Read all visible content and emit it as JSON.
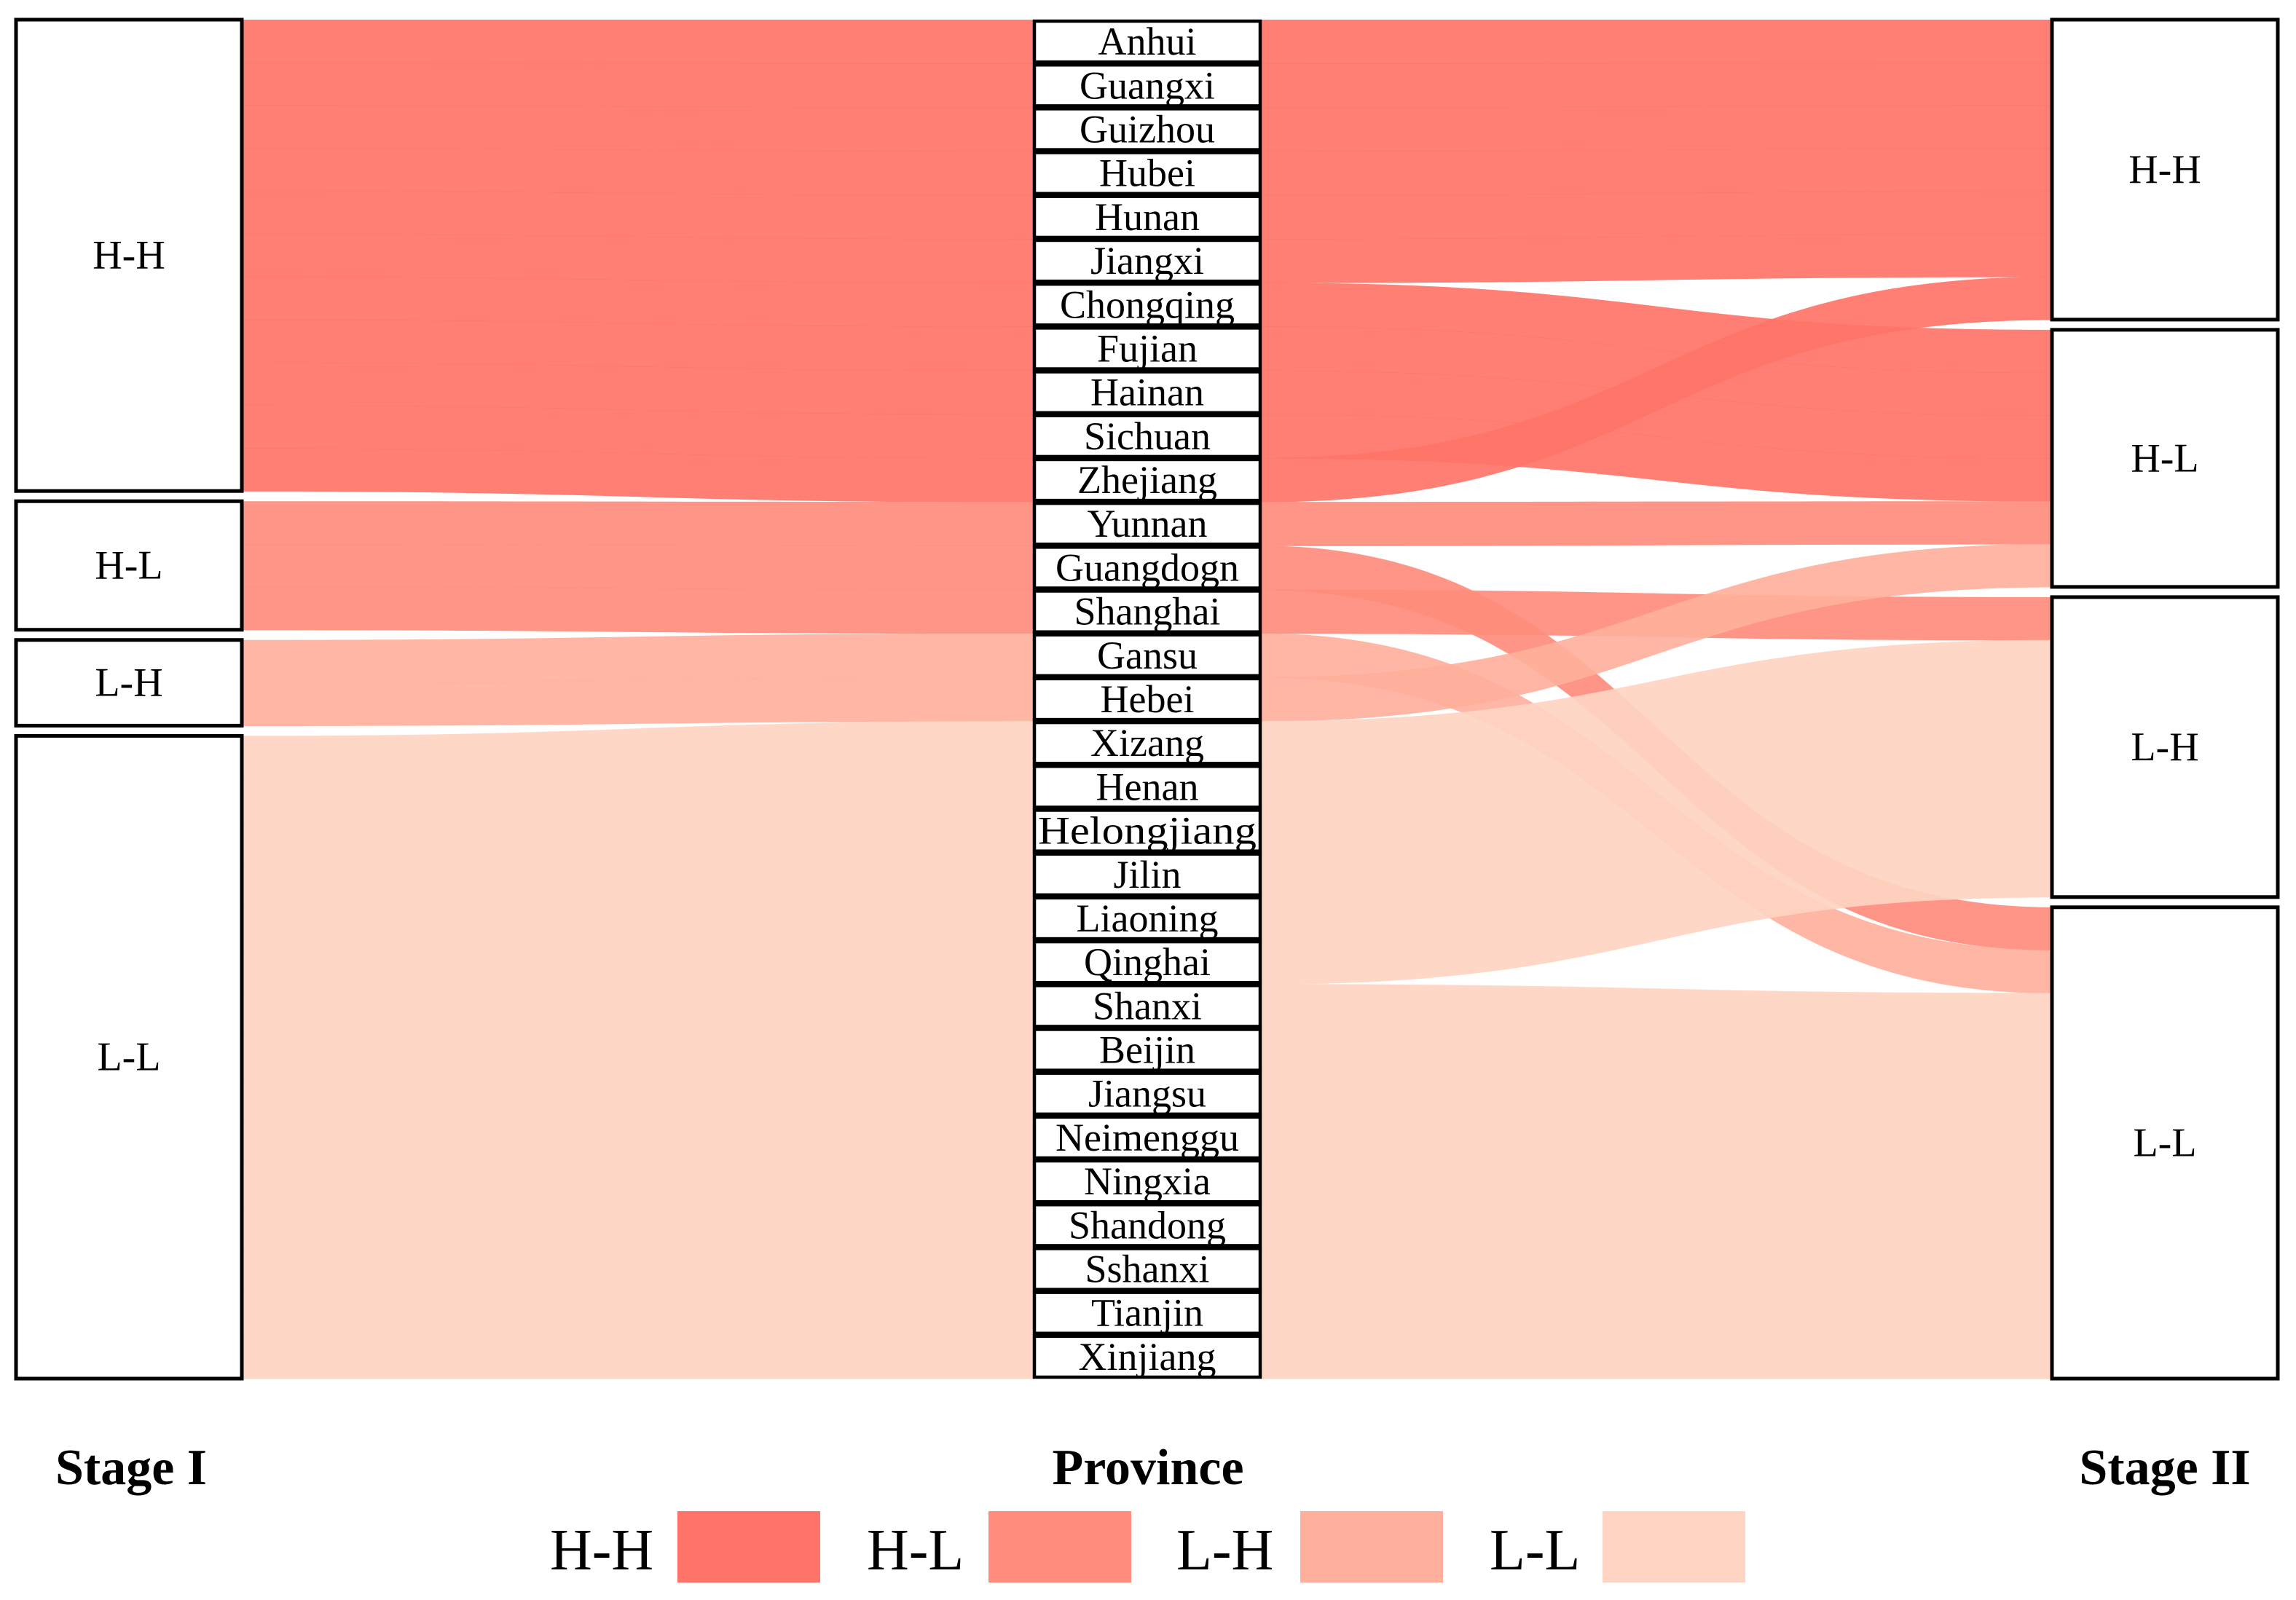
{
  "chart_data": {
    "type": "sankey",
    "axes": [
      "Stage I",
      "Province",
      "Stage II"
    ],
    "categories": [
      "H-H",
      "H-L",
      "L-H",
      "L-L"
    ],
    "colors": {
      "H-H": "#ff7468",
      "H-L": "#ff8c7c",
      "L-H": "#ffb09c",
      "L-L": "#ffd4c2"
    },
    "provinces": [
      {
        "name": "Anhui",
        "stage1": "H-H",
        "stage2": "H-H"
      },
      {
        "name": "Guangxi",
        "stage1": "H-H",
        "stage2": "H-H"
      },
      {
        "name": "Guizhou",
        "stage1": "H-H",
        "stage2": "H-H"
      },
      {
        "name": "Hubei",
        "stage1": "H-H",
        "stage2": "H-H"
      },
      {
        "name": "Hunan",
        "stage1": "H-H",
        "stage2": "H-H"
      },
      {
        "name": "Jiangxi",
        "stage1": "H-H",
        "stage2": "H-H"
      },
      {
        "name": "Chongqing",
        "stage1": "H-H",
        "stage2": "H-L"
      },
      {
        "name": "Fujian",
        "stage1": "H-H",
        "stage2": "H-L"
      },
      {
        "name": "Hainan",
        "stage1": "H-H",
        "stage2": "H-L"
      },
      {
        "name": "Sichuan",
        "stage1": "H-H",
        "stage2": "H-L"
      },
      {
        "name": "Zhejiang",
        "stage1": "H-H",
        "stage2": "H-H"
      },
      {
        "name": "Yunnan",
        "stage1": "H-L",
        "stage2": "H-L"
      },
      {
        "name": "Guangdogn",
        "stage1": "H-L",
        "stage2": "L-L"
      },
      {
        "name": "Shanghai",
        "stage1": "H-L",
        "stage2": "L-H"
      },
      {
        "name": "Gansu",
        "stage1": "L-H",
        "stage2": "L-L"
      },
      {
        "name": "Hebei",
        "stage1": "L-H",
        "stage2": "H-L"
      },
      {
        "name": "Xizang",
        "stage1": "L-L",
        "stage2": "L-H"
      },
      {
        "name": "Henan",
        "stage1": "L-L",
        "stage2": "L-H"
      },
      {
        "name": "Helongjiang",
        "stage1": "L-L",
        "stage2": "L-H"
      },
      {
        "name": "Jilin",
        "stage1": "L-L",
        "stage2": "L-H"
      },
      {
        "name": "Liaoning",
        "stage1": "L-L",
        "stage2": "L-H"
      },
      {
        "name": "Qinghai",
        "stage1": "L-L",
        "stage2": "L-H"
      },
      {
        "name": "Shanxi",
        "stage1": "L-L",
        "stage2": "L-L"
      },
      {
        "name": "Beijin",
        "stage1": "L-L",
        "stage2": "L-L"
      },
      {
        "name": "Jiangsu",
        "stage1": "L-L",
        "stage2": "L-L"
      },
      {
        "name": "Neimenggu",
        "stage1": "L-L",
        "stage2": "L-L"
      },
      {
        "name": "Ningxia",
        "stage1": "L-L",
        "stage2": "L-L"
      },
      {
        "name": "Shandong",
        "stage1": "L-L",
        "stage2": "L-L"
      },
      {
        "name": "Sshanxi",
        "stage1": "L-L",
        "stage2": "L-L"
      },
      {
        "name": "Tianjin",
        "stage1": "L-L",
        "stage2": "L-L"
      },
      {
        "name": "Xinjiang",
        "stage1": "L-L",
        "stage2": "L-L"
      }
    ],
    "legend": {
      "position": "bottom-center",
      "items": [
        "H-H",
        "H-L",
        "L-H",
        "L-L"
      ]
    }
  }
}
